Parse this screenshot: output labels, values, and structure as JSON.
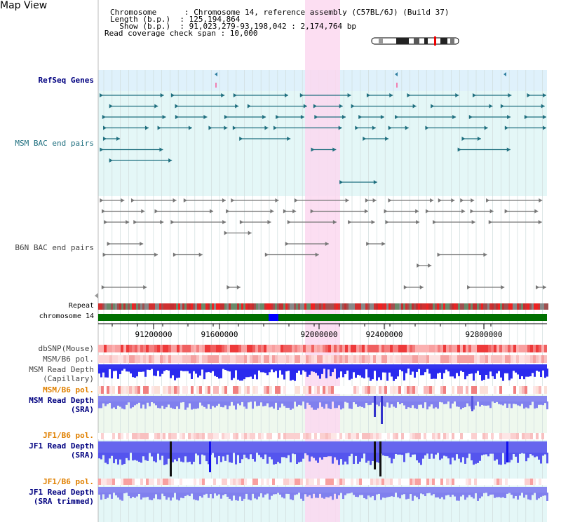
{
  "title": "Map View",
  "info": {
    "chromosome": "Chromosome      : Chromosome 14, reference assembly (C57BL/6J) (Build 37)",
    "length": "Length (b.p.)  : 125,194,864",
    "show": "  Show (b.p.)  : 91,023,279-93,198,042 : 2,174,764 bp",
    "coverage": "Read coverage check span : 10,000"
  },
  "tracks": {
    "refseq": "RefSeq Genes",
    "msm_bac": "MSM BAC end pairs",
    "b6n_bac": "B6N BAC end pairs",
    "repeat": "Repeat",
    "chromosome": "chromosome 14",
    "dbsnp": "dbSNP(Mouse)",
    "msm_pol1": "MSM/B6 pol.",
    "msm_depth_cap_1": "MSM Read Depth",
    "msm_depth_cap_2": "(Capillary)",
    "msm_pol2": "MSM/B6 pol.",
    "msm_depth_sra_1": "MSM Read Depth",
    "msm_depth_sra_2": "(SRA)",
    "jf1_pol1": "JF1/B6 pol.",
    "jf1_depth_sra_1": "JF1 Read Depth",
    "jf1_depth_sra_2": "(SRA)",
    "jf1_pol2": "JF1/B6 pol.",
    "jf1_depth_trim_1": "JF1 Read Depth",
    "jf1_depth_trim_2": "(SRA trimmed)"
  },
  "axis": {
    "ticks": [
      "91200000",
      "91600000",
      "92000000",
      "92400000",
      "92800000"
    ]
  },
  "colors": {
    "refseq_bg": "#dff1fb",
    "msm_bg": "#e4f7f7",
    "b6n_bg": "#f2f2f2",
    "highlight": "#fbd8f0",
    "gene": "#2f7f9f",
    "bac_msm": "#1f6f7f",
    "bac_b6n": "#777777",
    "chrom_bar": "#007000",
    "chrom_mark": "#0000ff",
    "depth_blue": "#2222ee",
    "depth_light": "#7777ee"
  }
}
